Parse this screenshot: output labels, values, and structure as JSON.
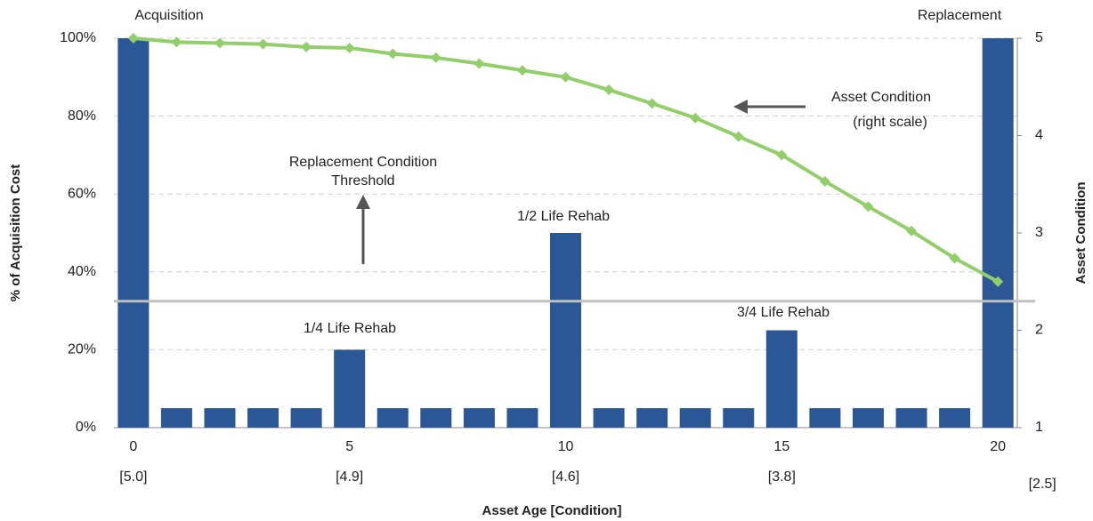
{
  "chart_data": {
    "type": "bar_line",
    "x_label": "Asset Age [Condition]",
    "y_label": "% of Acquisition Cost",
    "y2_label": "Asset Condition",
    "x": [
      0,
      1,
      2,
      3,
      4,
      5,
      6,
      7,
      8,
      9,
      10,
      11,
      12,
      13,
      14,
      15,
      16,
      17,
      18,
      19,
      20
    ],
    "xlim": [
      -0.45,
      20.45
    ],
    "xticks": [
      0,
      5,
      10,
      15,
      20
    ],
    "condition_labels": [
      "[5.0]",
      "[4.9]",
      "[4.6]",
      "[3.8]",
      "[2.5]"
    ],
    "ylim": [
      0,
      100
    ],
    "yticks": [
      {
        "value": 0,
        "label": "0%"
      },
      {
        "value": 20,
        "label": "20%"
      },
      {
        "value": 40,
        "label": "40%"
      },
      {
        "value": 60,
        "label": "60%"
      },
      {
        "value": 80,
        "label": "80%"
      },
      {
        "value": 100,
        "label": "100%"
      }
    ],
    "y2lim": [
      1,
      5
    ],
    "y2ticks": [
      1,
      2,
      3,
      4,
      5
    ],
    "grid": true,
    "series": [
      {
        "kind": "bar",
        "color": "#2b5797",
        "values": [
          100,
          5,
          5,
          5,
          5,
          20,
          5,
          5,
          5,
          5,
          50,
          5,
          5,
          5,
          5,
          25,
          5,
          5,
          5,
          5,
          100
        ]
      },
      {
        "kind": "line",
        "color": "#92cf6a",
        "axis": "y2",
        "values": [
          5.0,
          4.96,
          4.95,
          4.94,
          4.91,
          4.9,
          4.84,
          4.8,
          4.74,
          4.67,
          4.6,
          4.47,
          4.33,
          4.18,
          3.99,
          3.8,
          3.53,
          3.27,
          3.02,
          2.74,
          2.5
        ]
      }
    ],
    "threshold": {
      "value": 2.5,
      "axis": "y2",
      "color": "#c0c0c0"
    },
    "annotations": [
      "Acquisition",
      "Replacement",
      "Asset Condition",
      "(right scale)",
      "Replacement Condition",
      "Threshold",
      "1/4 Life Rehab",
      "1/2 Life Rehab",
      "3/4 Life Rehab"
    ]
  }
}
